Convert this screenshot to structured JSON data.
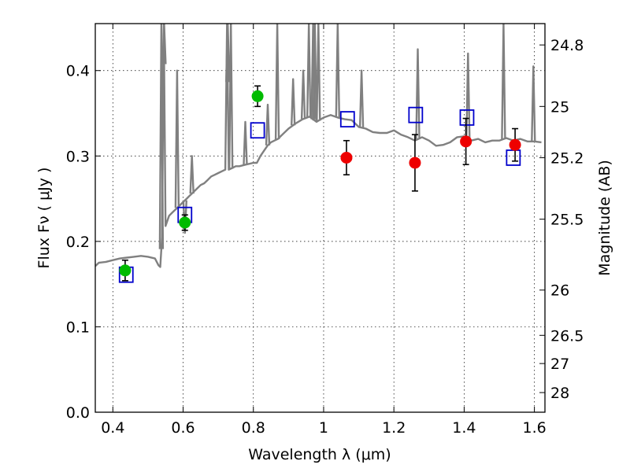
{
  "chart_data": {
    "type": "scatter",
    "title": "",
    "xlabel": "Wavelength  λ (μm)",
    "ylabel": "Flux  Fν  ( μJy )",
    "y2label": "Magnitude (AB)",
    "xlim": [
      0.35,
      1.63
    ],
    "ylim": [
      0.0,
      0.455
    ],
    "grid": true,
    "x_ticks": [
      0.4,
      0.6,
      0.8,
      1.0,
      1.2,
      1.4,
      1.6
    ],
    "x_tick_labels": [
      "0.4",
      "0.6",
      "0.8",
      "1",
      "1.2",
      "1.4",
      "1.6"
    ],
    "y_ticks": [
      0.0,
      0.1,
      0.2,
      0.3,
      0.4
    ],
    "y_tick_labels": [
      "0.0",
      "0.1",
      "0.2",
      "0.3",
      "0.4"
    ],
    "y2_ticks": [
      {
        "label": "24.8",
        "flux": 0.43
      },
      {
        "label": "25",
        "flux": 0.358
      },
      {
        "label": "25.2",
        "flux": 0.298
      },
      {
        "label": "25.5",
        "flux": 0.226
      },
      {
        "label": "26",
        "flux": 0.143
      },
      {
        "label": "26.5",
        "flux": 0.09
      },
      {
        "label": "27",
        "flux": 0.057
      },
      {
        "label": "28",
        "flux": 0.023
      }
    ],
    "colors": {
      "spectrum": "#808080",
      "green_points": "#00bb00",
      "red_points": "#ee0000",
      "model_squares": "#0000cc",
      "errorbars": "#000000"
    },
    "series": [
      {
        "kind": "line",
        "x": [
          0.35,
          0.36,
          0.38,
          0.4,
          0.42,
          0.44,
          0.46,
          0.48,
          0.5,
          0.52,
          0.53,
          0.535,
          0.54,
          0.545,
          0.55,
          0.56,
          0.57,
          0.58,
          0.59,
          0.6,
          0.61,
          0.62,
          0.63,
          0.64,
          0.65,
          0.66,
          0.67,
          0.68,
          0.69,
          0.7,
          0.71,
          0.72,
          0.725,
          0.73,
          0.74,
          0.75,
          0.76,
          0.77,
          0.78,
          0.79,
          0.8,
          0.81,
          0.82,
          0.83,
          0.84,
          0.85,
          0.86,
          0.87,
          0.88,
          0.9,
          0.92,
          0.94,
          0.96,
          0.98,
          1.0,
          1.02,
          1.04,
          1.06,
          1.08,
          1.1,
          1.12,
          1.14,
          1.16,
          1.18,
          1.2,
          1.22,
          1.24,
          1.26,
          1.28,
          1.3,
          1.32,
          1.34,
          1.36,
          1.38,
          1.4,
          1.42,
          1.44,
          1.46,
          1.48,
          1.5,
          1.52,
          1.54,
          1.56,
          1.58,
          1.6,
          1.62
        ],
        "y": [
          0.171,
          0.175,
          0.176,
          0.178,
          0.18,
          0.181,
          0.182,
          0.183,
          0.182,
          0.18,
          0.172,
          0.17,
          0.205,
          0.455,
          0.218,
          0.23,
          0.234,
          0.238,
          0.242,
          0.246,
          0.25,
          0.254,
          0.258,
          0.262,
          0.266,
          0.268,
          0.272,
          0.276,
          0.278,
          0.28,
          0.282,
          0.284,
          0.455,
          0.284,
          0.286,
          0.288,
          0.288,
          0.289,
          0.29,
          0.291,
          0.292,
          0.292,
          0.3,
          0.306,
          0.312,
          0.316,
          0.318,
          0.32,
          0.324,
          0.332,
          0.338,
          0.343,
          0.346,
          0.34,
          0.345,
          0.348,
          0.345,
          0.343,
          0.342,
          0.334,
          0.332,
          0.328,
          0.327,
          0.327,
          0.33,
          0.325,
          0.322,
          0.318,
          0.322,
          0.318,
          0.312,
          0.313,
          0.316,
          0.322,
          0.323,
          0.318,
          0.32,
          0.316,
          0.318,
          0.318,
          0.321,
          0.318,
          0.32,
          0.317,
          0.317,
          0.316
        ],
        "spikes": [
          {
            "x": 0.538,
            "top": 0.455
          },
          {
            "x": 0.546,
            "top": 0.455
          },
          {
            "x": 0.583,
            "top": 0.4
          },
          {
            "x": 0.605,
            "top": 0.21
          },
          {
            "x": 0.625,
            "top": 0.3
          },
          {
            "x": 0.727,
            "top": 0.455
          },
          {
            "x": 0.736,
            "top": 0.455
          },
          {
            "x": 0.777,
            "top": 0.34
          },
          {
            "x": 0.841,
            "top": 0.36
          },
          {
            "x": 0.868,
            "top": 0.455
          },
          {
            "x": 0.913,
            "top": 0.39
          },
          {
            "x": 0.942,
            "top": 0.4
          },
          {
            "x": 0.958,
            "top": 0.455
          },
          {
            "x": 0.97,
            "top": 0.455
          },
          {
            "x": 0.975,
            "top": 0.455
          },
          {
            "x": 0.985,
            "top": 0.455
          },
          {
            "x": 1.04,
            "top": 0.455
          },
          {
            "x": 1.108,
            "top": 0.4
          },
          {
            "x": 1.268,
            "top": 0.425
          },
          {
            "x": 1.411,
            "top": 0.42
          },
          {
            "x": 1.512,
            "top": 0.455
          },
          {
            "x": 1.597,
            "top": 0.405
          }
        ]
      },
      {
        "kind": "scatter-errorbar",
        "color": "green",
        "x": [
          0.435,
          0.605,
          0.812
        ],
        "y": [
          0.166,
          0.222,
          0.37
        ],
        "yerr": [
          0.012,
          0.009,
          0.012
        ]
      },
      {
        "kind": "scatter-errorbar",
        "color": "red",
        "x": [
          1.065,
          1.26,
          1.405,
          1.545
        ],
        "y": [
          0.298,
          0.292,
          0.317,
          0.313
        ],
        "yerr": [
          0.02,
          0.033,
          0.027,
          0.019
        ]
      },
      {
        "kind": "open-squares",
        "color": "blue",
        "x": [
          0.438,
          0.605,
          0.812,
          1.068,
          1.262,
          1.408,
          1.54
        ],
        "y": [
          0.161,
          0.231,
          0.33,
          0.343,
          0.348,
          0.345,
          0.298
        ]
      }
    ]
  }
}
